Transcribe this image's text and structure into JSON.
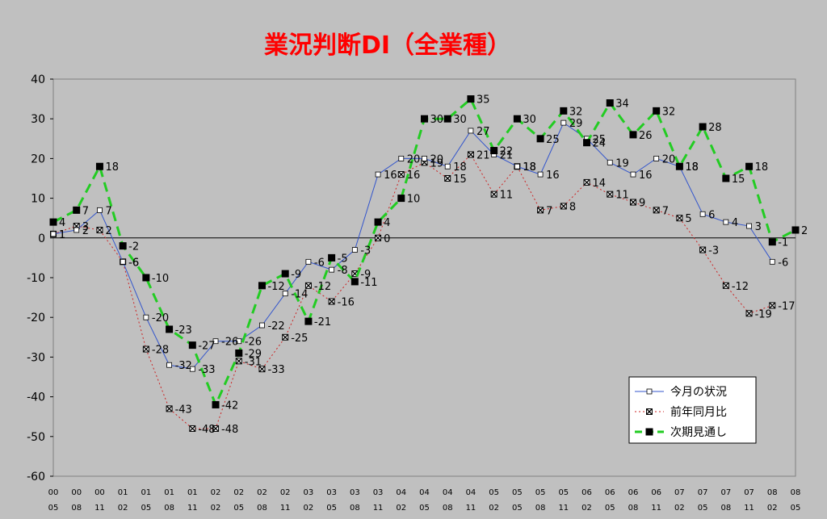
{
  "chart_data": {
    "type": "line",
    "title": "業況判断DI（全業種）",
    "xlabel": "",
    "ylabel": "",
    "ylim": [
      -60,
      40
    ],
    "yticks": [
      40,
      30,
      20,
      10,
      0,
      -10,
      -20,
      -30,
      -40,
      -50,
      -60
    ],
    "grid": false,
    "legend_position": "bottom-right",
    "categories": [
      [
        "00",
        "05"
      ],
      [
        "00",
        "08"
      ],
      [
        "00",
        "11"
      ],
      [
        "01",
        "02"
      ],
      [
        "01",
        "05"
      ],
      [
        "01",
        "08"
      ],
      [
        "01",
        "11"
      ],
      [
        "02",
        "02"
      ],
      [
        "02",
        "05"
      ],
      [
        "02",
        "08"
      ],
      [
        "02",
        "11"
      ],
      [
        "03",
        "02"
      ],
      [
        "03",
        "05"
      ],
      [
        "03",
        "08"
      ],
      [
        "03",
        "11"
      ],
      [
        "04",
        "02"
      ],
      [
        "04",
        "05"
      ],
      [
        "04",
        "08"
      ],
      [
        "04",
        "11"
      ],
      [
        "05",
        "02"
      ],
      [
        "05",
        "05"
      ],
      [
        "05",
        "08"
      ],
      [
        "05",
        "11"
      ],
      [
        "06",
        "02"
      ],
      [
        "06",
        "05"
      ],
      [
        "06",
        "08"
      ],
      [
        "06",
        "11"
      ],
      [
        "07",
        "02"
      ],
      [
        "07",
        "05"
      ],
      [
        "07",
        "08"
      ],
      [
        "07",
        "11"
      ],
      [
        "08",
        "02"
      ],
      [
        "08",
        "05"
      ]
    ],
    "series": [
      {
        "name": "今月の状況",
        "color": "#3355cc",
        "values": [
          1,
          2,
          7,
          -6,
          -20,
          -32,
          -33,
          -26,
          -26,
          -22,
          -14,
          -6,
          -8,
          -3,
          16,
          20,
          20,
          18,
          27,
          21,
          18,
          16,
          29,
          25,
          19,
          16,
          20,
          18,
          6,
          4,
          3,
          -6,
          null
        ]
      },
      {
        "name": "前年同月比",
        "color": "#cc2222",
        "values": [
          1,
          3,
          2,
          -6,
          -28,
          -43,
          -48,
          -48,
          -31,
          -33,
          -25,
          -12,
          -16,
          -9,
          0,
          16,
          19,
          15,
          21,
          11,
          18,
          7,
          8,
          14,
          11,
          9,
          7,
          5,
          -3,
          -12,
          -19,
          -17,
          null
        ]
      },
      {
        "name": "次期見通し",
        "color": "#22cc22",
        "values": [
          4,
          7,
          18,
          -2,
          -10,
          -23,
          -27,
          -42,
          -29,
          -12,
          -9,
          -21,
          -5,
          -11,
          4,
          10,
          30,
          30,
          35,
          22,
          30,
          25,
          32,
          24,
          34,
          26,
          32,
          18,
          28,
          15,
          18,
          -1,
          2
        ]
      }
    ]
  }
}
